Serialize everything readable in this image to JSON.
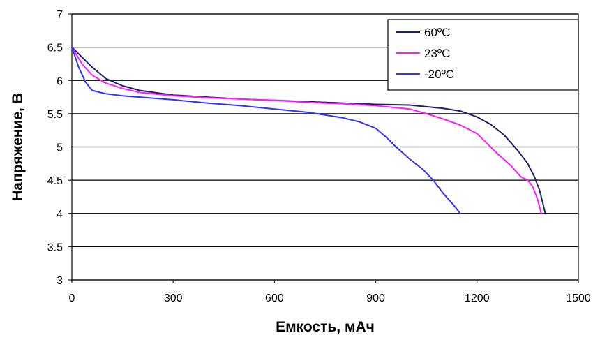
{
  "chart_data": {
    "type": "line",
    "title": "",
    "xlabel": "Емкость, мАч",
    "ylabel": "Напряжение, В",
    "xlim": [
      0,
      1500
    ],
    "ylim": [
      3,
      7
    ],
    "xticks": [
      "0",
      "300",
      "600",
      "900",
      "1200",
      "1500"
    ],
    "yticks": [
      "3",
      "3.5",
      "4",
      "4.5",
      "5",
      "5.5",
      "6",
      "6.5",
      "7"
    ],
    "grid": "horizontal",
    "legend_position": "top-right",
    "series": [
      {
        "name": "60ºC",
        "color": "#1f1f6e",
        "x": [
          0,
          30,
          60,
          100,
          150,
          200,
          300,
          400,
          500,
          600,
          700,
          800,
          900,
          1000,
          1100,
          1150,
          1200,
          1240,
          1280,
          1320,
          1350,
          1370,
          1385,
          1395,
          1402
        ],
        "y": [
          6.5,
          6.35,
          6.2,
          6.03,
          5.92,
          5.85,
          5.78,
          5.75,
          5.72,
          5.7,
          5.68,
          5.66,
          5.64,
          5.63,
          5.58,
          5.54,
          5.45,
          5.34,
          5.18,
          4.95,
          4.75,
          4.55,
          4.35,
          4.15,
          4.0
        ]
      },
      {
        "name": "23ºC",
        "color": "#ff1aff",
        "x": [
          0,
          30,
          60,
          100,
          150,
          200,
          300,
          400,
          500,
          600,
          700,
          800,
          900,
          1000,
          1050,
          1100,
          1150,
          1200,
          1230,
          1260,
          1300,
          1330,
          1350,
          1365,
          1380,
          1390
        ],
        "y": [
          6.5,
          6.25,
          6.08,
          5.96,
          5.88,
          5.82,
          5.77,
          5.74,
          5.72,
          5.7,
          5.67,
          5.65,
          5.62,
          5.57,
          5.5,
          5.42,
          5.33,
          5.2,
          5.05,
          4.9,
          4.72,
          4.55,
          4.5,
          4.4,
          4.2,
          4.0
        ]
      },
      {
        "name": "-20ºC",
        "color": "#3333ff",
        "x": [
          0,
          20,
          40,
          60,
          100,
          150,
          200,
          300,
          400,
          500,
          600,
          700,
          750,
          800,
          850,
          900,
          930,
          960,
          1000,
          1040,
          1070,
          1100,
          1130,
          1150
        ],
        "y": [
          6.5,
          6.2,
          5.98,
          5.85,
          5.8,
          5.77,
          5.75,
          5.71,
          5.66,
          5.62,
          5.57,
          5.52,
          5.48,
          5.44,
          5.38,
          5.28,
          5.15,
          5.0,
          4.82,
          4.66,
          4.5,
          4.3,
          4.13,
          4.0
        ]
      }
    ]
  }
}
